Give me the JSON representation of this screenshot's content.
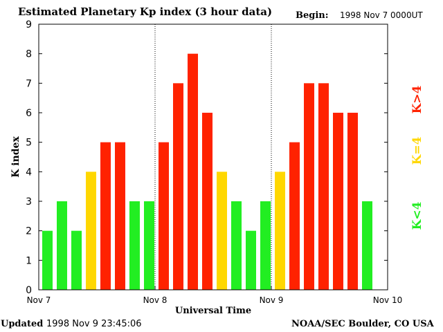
{
  "header": {
    "title": "Estimated Planetary Kp index (3 hour data)",
    "begin_label": "Begin:",
    "begin_value": "1998 Nov 7 0000UT"
  },
  "footer": {
    "updated_label": "Updated",
    "updated_value": "1998 Nov  9 23:45:06",
    "credit": "NOAA/SEC Boulder, CO USA"
  },
  "legend": {
    "low": "K<4",
    "mid": "K=4",
    "high": "K>4"
  },
  "colors": {
    "low": "#22ee22",
    "mid": "#ffd700",
    "high": "#ff2200"
  },
  "chart_data": {
    "type": "bar",
    "title": "Estimated Planetary Kp index (3 hour data)",
    "xlabel": "Universal Time",
    "ylabel": "K index",
    "ylim": [
      0,
      9
    ],
    "yticks": [
      0,
      1,
      2,
      3,
      4,
      5,
      6,
      7,
      8,
      9
    ],
    "xticks": [
      "Nov 7",
      "Nov 8",
      "Nov 9",
      "Nov 10"
    ],
    "day_separators": [
      "Nov 8",
      "Nov 9"
    ],
    "interval_hours": 3,
    "values": [
      2,
      3,
      2,
      4,
      5,
      5,
      3,
      3,
      5,
      7,
      8,
      6,
      4,
      3,
      2,
      3,
      4,
      5,
      7,
      7,
      6,
      6,
      3
    ]
  }
}
